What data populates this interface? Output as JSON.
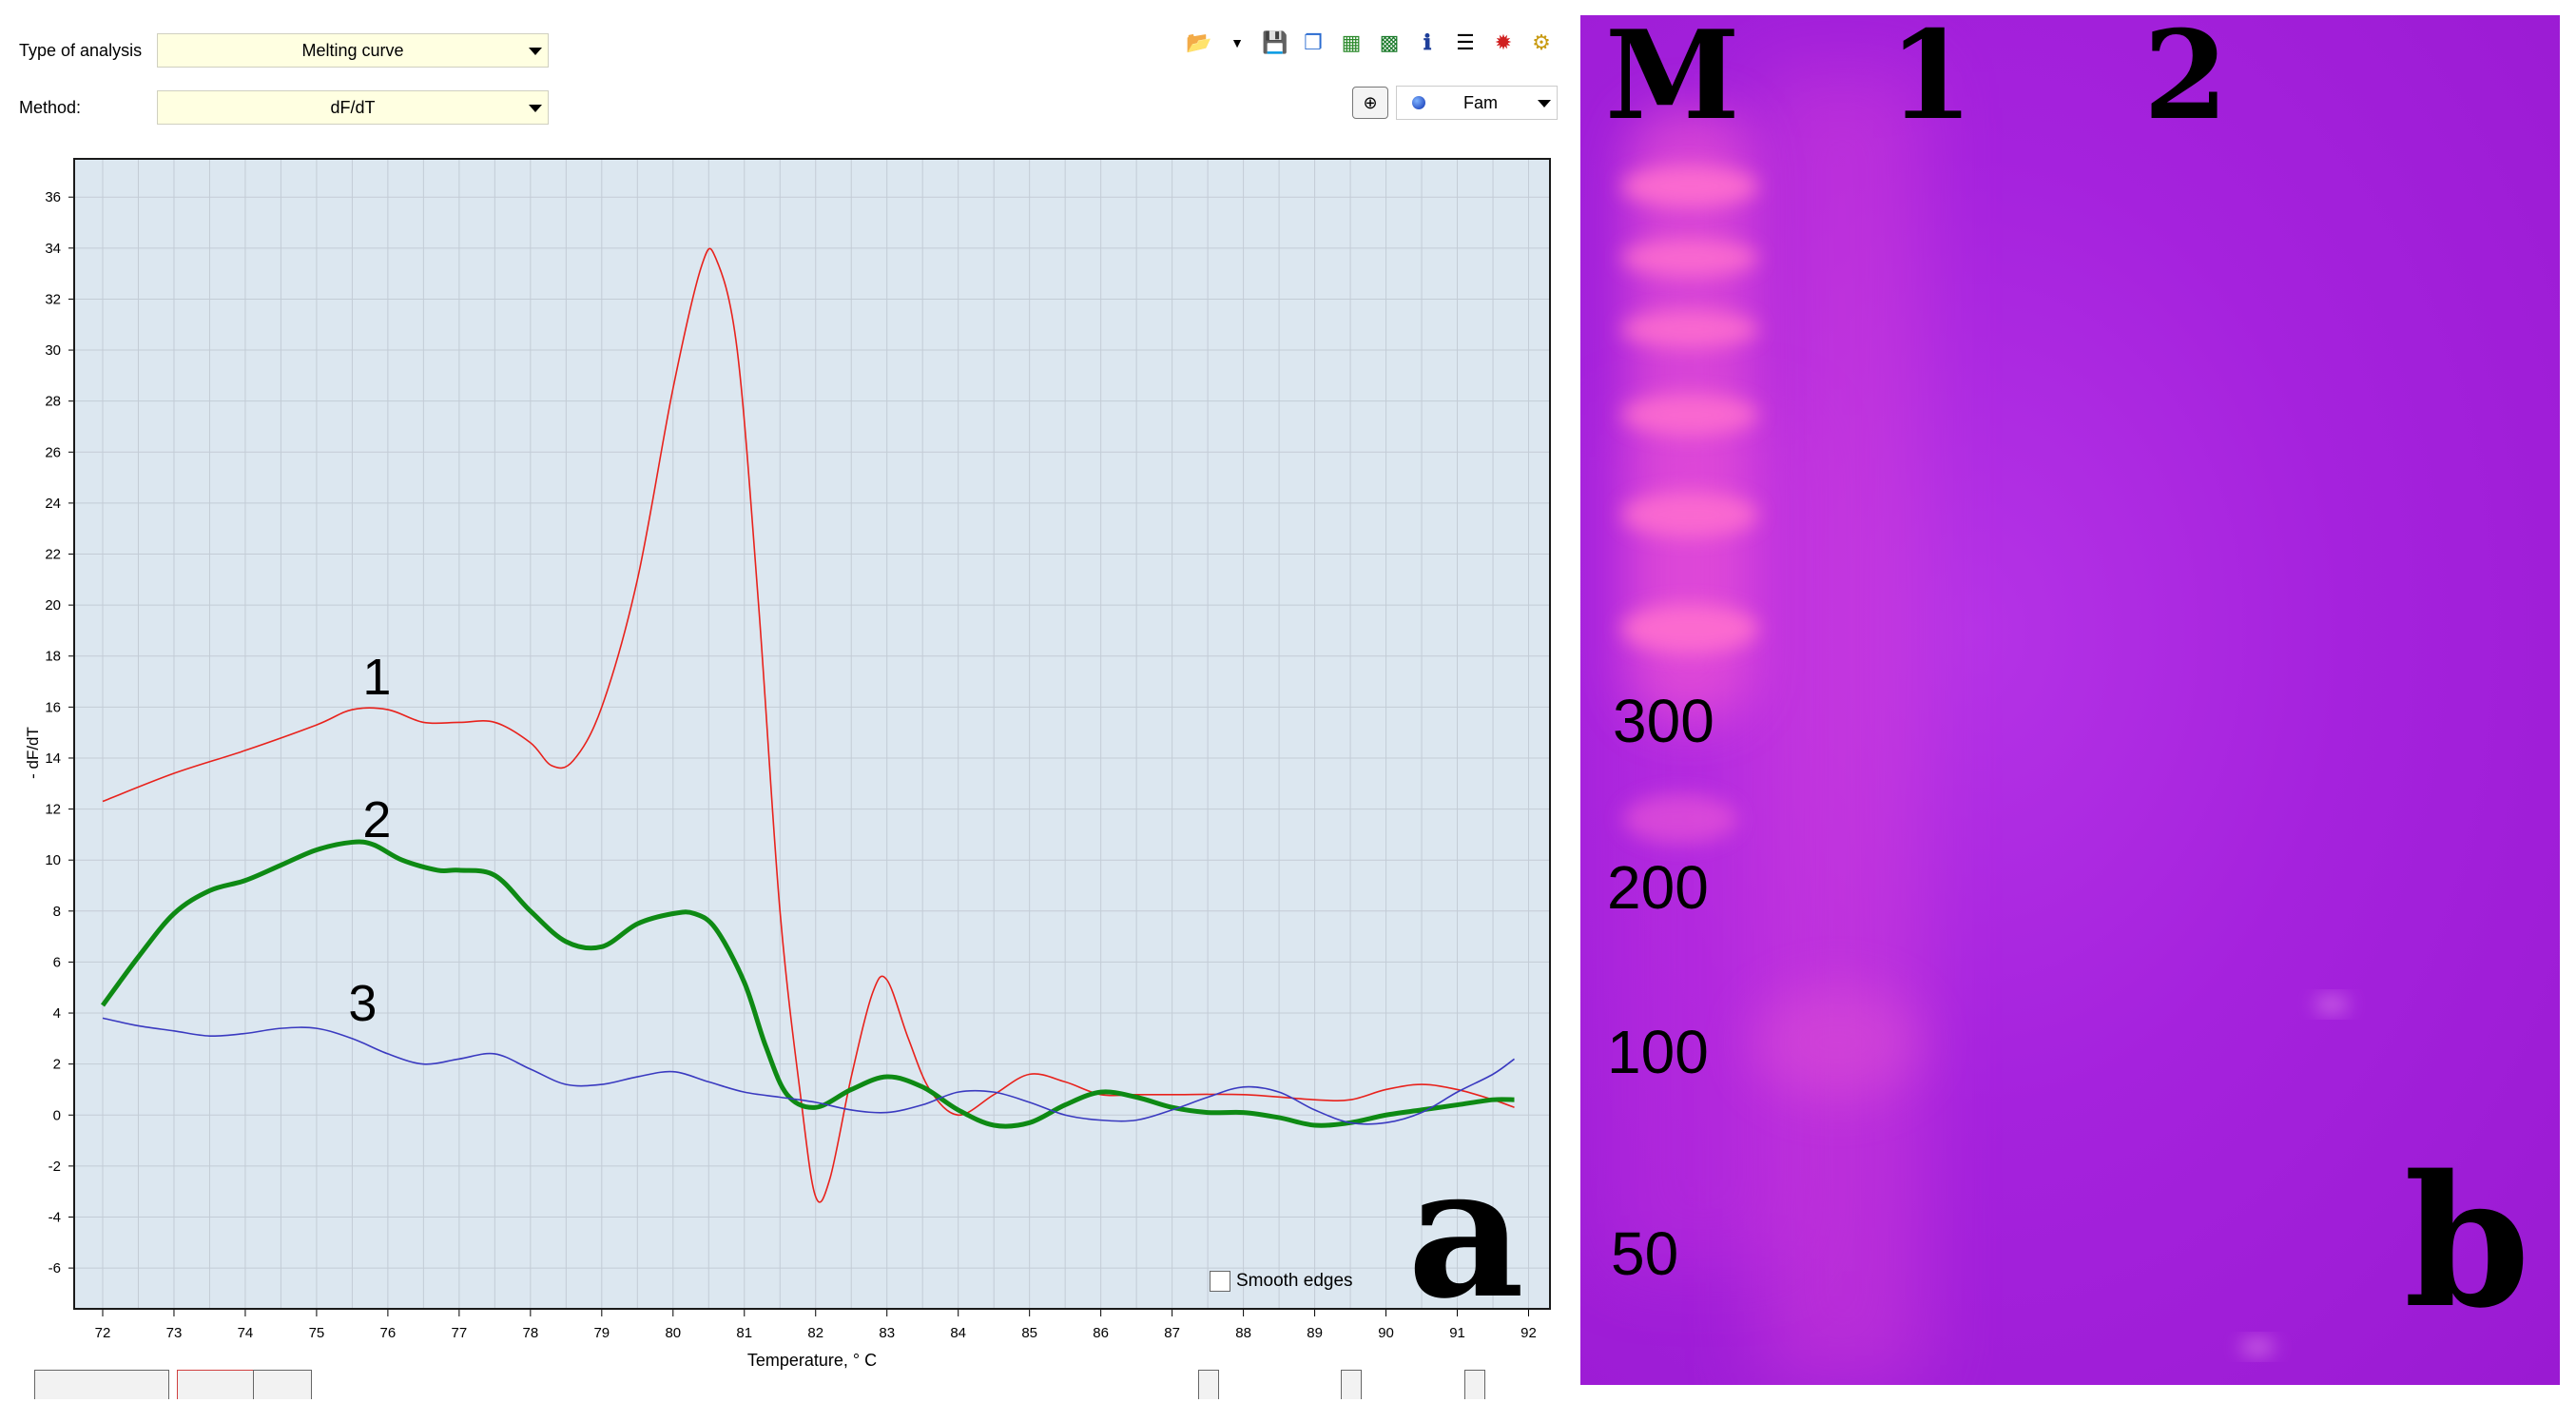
{
  "analysis": {
    "type_label": "Type of analysis",
    "type_value": "Melting curve",
    "method_label": "Method:",
    "method_value": "dF/dT",
    "dye_value": "Fam"
  },
  "smooth_edges_label": "Smooth edges",
  "panel_a_letter": "a",
  "panel_b_letter": "b",
  "gel": {
    "lanes": [
      "M",
      "1",
      "2"
    ],
    "ladder_sizes": [
      "300",
      "200",
      "100",
      "50"
    ]
  },
  "colors": {
    "plot_bg": "#dce7f0",
    "curve1": "#e8221c",
    "curve2": "#0e8a14",
    "curve3": "#3a3ac0",
    "gel_bg": "#a522dd",
    "ladder": "#ff66cc"
  },
  "chart_data": {
    "type": "line",
    "xlabel": "Temperature, ° C",
    "ylabel": "- dF/dT",
    "xlim": [
      71.6,
      92.3
    ],
    "ylim": [
      -7.6,
      37.5
    ],
    "xticks": [
      72,
      73,
      74,
      75,
      76,
      77,
      78,
      79,
      80,
      81,
      82,
      83,
      84,
      85,
      86,
      87,
      88,
      89,
      90,
      91,
      92
    ],
    "yticks": [
      -6,
      -4,
      -2,
      0,
      2,
      4,
      6,
      8,
      10,
      12,
      14,
      16,
      18,
      20,
      22,
      24,
      26,
      28,
      30,
      32,
      34,
      36
    ],
    "grid": true,
    "series": [
      {
        "name": "1",
        "x": [
          72,
          73,
          74,
          75,
          75.5,
          76,
          76.5,
          77,
          77.5,
          78,
          78.3,
          78.6,
          79,
          79.5,
          80,
          80.4,
          80.6,
          80.9,
          81.2,
          81.5,
          81.8,
          82,
          82.2,
          82.5,
          82.8,
          83,
          83.3,
          83.6,
          84,
          84.5,
          85,
          85.5,
          86,
          86.5,
          87,
          88,
          89,
          89.5,
          90,
          90.5,
          91,
          91.5,
          91.8
        ],
        "values": [
          12.3,
          13.4,
          14.3,
          15.3,
          15.9,
          15.9,
          15.4,
          15.4,
          15.4,
          14.6,
          13.7,
          13.9,
          16.0,
          21.0,
          28.5,
          33.3,
          33.6,
          30.0,
          20.0,
          8.0,
          0.5,
          -3.2,
          -2.5,
          1.5,
          4.8,
          5.3,
          3.0,
          1.0,
          0.0,
          0.8,
          1.6,
          1.3,
          0.8,
          0.8,
          0.8,
          0.8,
          0.6,
          0.6,
          1.0,
          1.2,
          1.0,
          0.6,
          0.3
        ]
      },
      {
        "name": "2",
        "x": [
          72,
          72.5,
          73,
          73.5,
          74,
          74.5,
          75,
          75.5,
          75.8,
          76.2,
          76.7,
          77,
          77.5,
          78,
          78.5,
          79,
          79.5,
          80,
          80.3,
          80.6,
          81,
          81.3,
          81.6,
          82,
          82.5,
          83,
          83.5,
          84,
          84.5,
          85,
          85.5,
          86,
          86.5,
          87,
          87.5,
          88,
          88.5,
          89,
          89.5,
          90,
          90.5,
          91,
          91.5,
          91.8
        ],
        "values": [
          4.3,
          6.2,
          7.9,
          8.8,
          9.2,
          9.8,
          10.4,
          10.7,
          10.6,
          10.0,
          9.6,
          9.6,
          9.4,
          8.0,
          6.8,
          6.6,
          7.5,
          7.9,
          7.9,
          7.3,
          5.2,
          2.7,
          0.8,
          0.3,
          1.0,
          1.5,
          1.1,
          0.2,
          -0.4,
          -0.3,
          0.4,
          0.9,
          0.7,
          0.3,
          0.1,
          0.1,
          -0.1,
          -0.4,
          -0.3,
          0.0,
          0.2,
          0.4,
          0.6,
          0.6
        ]
      },
      {
        "name": "3",
        "x": [
          72,
          72.5,
          73,
          73.5,
          74,
          74.5,
          75,
          75.5,
          76,
          76.5,
          77,
          77.5,
          78,
          78.5,
          79,
          79.5,
          80,
          80.5,
          81,
          81.5,
          82,
          82.5,
          83,
          83.5,
          84,
          84.5,
          85,
          85.5,
          86,
          86.5,
          87,
          87.5,
          88,
          88.5,
          89,
          89.5,
          90,
          90.5,
          91,
          91.5,
          91.8
        ],
        "values": [
          3.8,
          3.5,
          3.3,
          3.1,
          3.2,
          3.4,
          3.4,
          3.0,
          2.4,
          2.0,
          2.2,
          2.4,
          1.8,
          1.2,
          1.2,
          1.5,
          1.7,
          1.3,
          0.9,
          0.7,
          0.5,
          0.2,
          0.1,
          0.4,
          0.9,
          0.9,
          0.5,
          0.0,
          -0.2,
          -0.2,
          0.2,
          0.7,
          1.1,
          0.9,
          0.2,
          -0.3,
          -0.3,
          0.1,
          0.9,
          1.6,
          2.2
        ]
      }
    ]
  }
}
